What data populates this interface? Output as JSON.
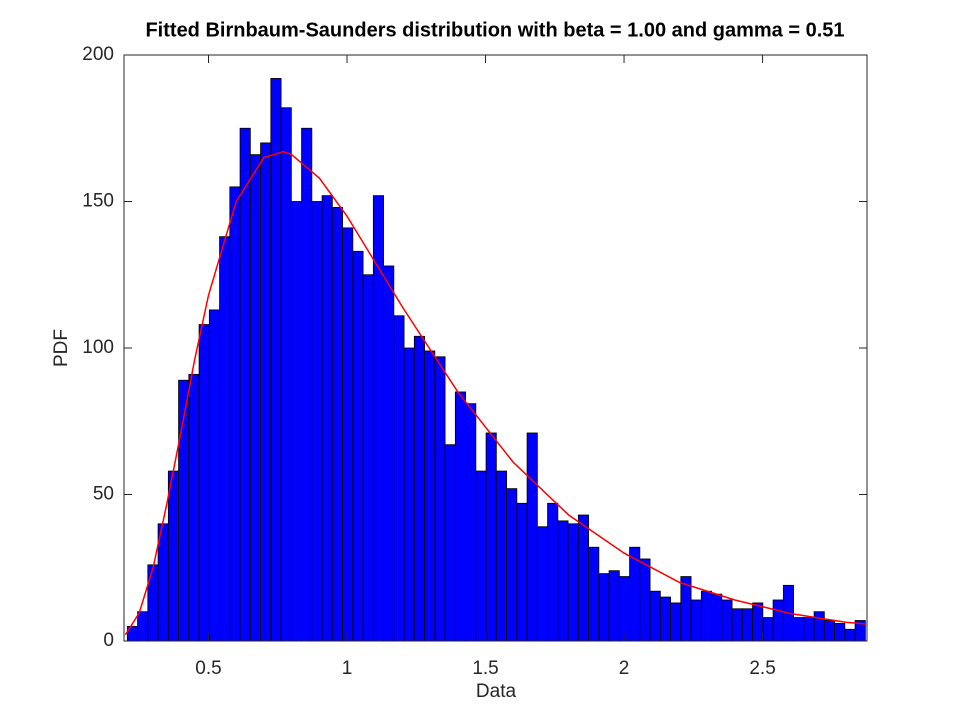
{
  "chart_data": {
    "type": "histogram",
    "title": "Fitted Birnbaum-Saunders distribution with beta = 1.00 and gamma = 0.51",
    "xlabel": "Data",
    "ylabel": "PDF",
    "bins": [
      0.207,
      0.244,
      0.281,
      0.318,
      0.355,
      0.392,
      0.429,
      0.466,
      0.503,
      0.54,
      0.577,
      0.614,
      0.651,
      0.688,
      0.725,
      0.762,
      0.799,
      0.836,
      0.873,
      0.91,
      0.947,
      0.984,
      1.021,
      1.058,
      1.095,
      1.132,
      1.169,
      1.206,
      1.243,
      1.28,
      1.317,
      1.354,
      1.391,
      1.428,
      1.465,
      1.502,
      1.539,
      1.576,
      1.613,
      1.65,
      1.687,
      1.724,
      1.761,
      1.798,
      1.835,
      1.872,
      1.909,
      1.946,
      1.983,
      2.02,
      2.057,
      2.094,
      2.131,
      2.168,
      2.205,
      2.242,
      2.279,
      2.316,
      2.353,
      2.39,
      2.427,
      2.464,
      2.501,
      2.538,
      2.575,
      2.612,
      2.649,
      2.686,
      2.723,
      2.76,
      2.797,
      2.834,
      2.871
    ],
    "values": [
      5,
      10,
      26,
      40,
      58,
      89,
      91,
      108,
      113,
      138,
      155,
      175,
      166,
      170,
      192,
      182,
      150,
      175,
      150,
      152,
      148,
      141,
      133,
      125,
      152,
      128,
      111,
      100,
      104,
      99,
      97,
      67,
      85,
      81,
      58,
      71,
      58,
      52,
      47,
      71,
      39,
      47,
      41,
      40,
      43,
      32,
      23,
      24,
      22,
      32,
      28,
      17,
      15,
      13,
      22,
      14,
      17,
      16,
      14,
      11,
      11,
      13,
      8,
      14,
      19,
      8,
      8,
      10,
      7,
      6,
      4,
      7
    ],
    "color": "#0000ff",
    "edgecolor": "#000000",
    "fit": {
      "type": "line",
      "color": "#ff0000",
      "x": [
        0.2,
        0.25,
        0.3,
        0.35,
        0.4,
        0.45,
        0.5,
        0.6,
        0.7,
        0.77,
        0.8,
        0.9,
        1.0,
        1.2,
        1.4,
        1.6,
        1.8,
        2.0,
        2.2,
        2.4,
        2.6,
        2.8,
        2.87
      ],
      "values": [
        2.1,
        9.6,
        25,
        47,
        71,
        96,
        118,
        150,
        165,
        167,
        166,
        158,
        145,
        114,
        85,
        61,
        43,
        30,
        20,
        14,
        9.4,
        6.4,
        5.8
      ]
    },
    "xlim": [
      0.195,
      2.877
    ],
    "xticks": [
      0.5,
      1,
      1.5,
      2,
      2.5
    ],
    "ylim": [
      0,
      200
    ],
    "yticks": [
      0,
      50,
      100,
      150,
      200
    ]
  }
}
